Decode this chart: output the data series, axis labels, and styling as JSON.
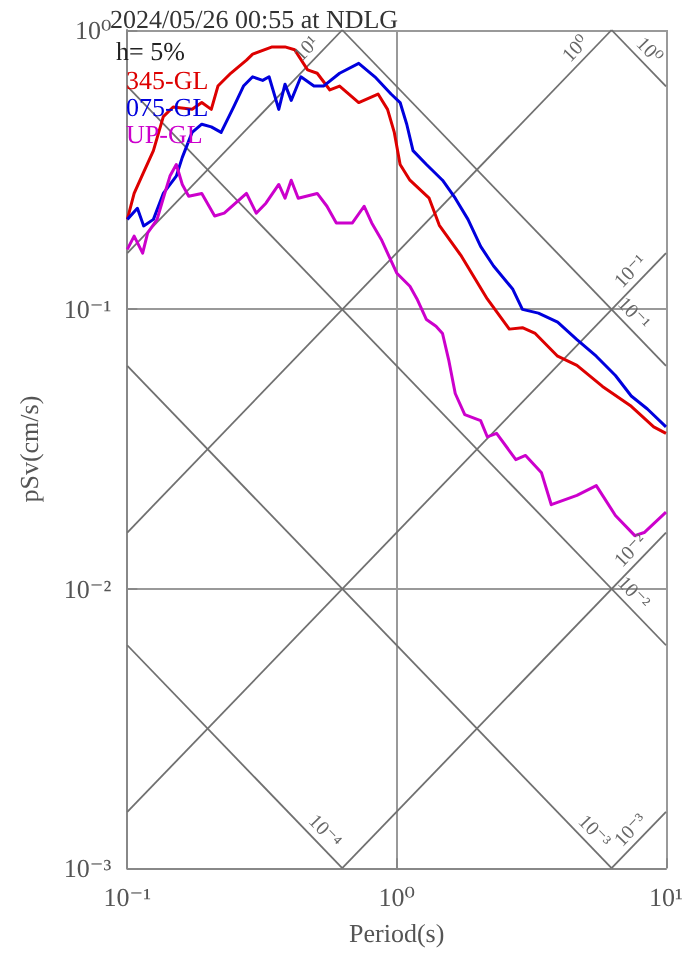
{
  "chart_data": {
    "type": "line",
    "title": "2024/05/26 00:55 at NDLG",
    "xlabel": "Period(s)",
    "ylabel": "pSv(cm/s)",
    "log": "xy",
    "xlim": [
      0.1,
      10
    ],
    "ylim": [
      0.001,
      1
    ],
    "xticks": [
      {
        "value": 0.1,
        "label": "10⁻¹"
      },
      {
        "value": 1,
        "label": "10⁰"
      },
      {
        "value": 10,
        "label": "10¹"
      }
    ],
    "yticks": [
      {
        "value": 0.001,
        "label": "10⁻³"
      },
      {
        "value": 0.01,
        "label": "10⁻²"
      },
      {
        "value": 0.1,
        "label": "10⁻¹"
      },
      {
        "value": 1,
        "label": "10⁰"
      }
    ],
    "grid": true,
    "legend": "top left",
    "series": [
      {
        "name": "345-GL",
        "color": "#dd0000",
        "x": [
          0.1,
          0.106,
          0.115,
          0.125,
          0.136,
          0.148,
          0.174,
          0.189,
          0.205,
          0.217,
          0.242,
          0.277,
          0.292,
          0.345,
          0.385,
          0.418,
          0.467,
          0.507,
          0.565,
          0.614,
          0.723,
          0.853,
          0.925,
          0.98,
          1.03,
          1.12,
          1.32,
          1.44,
          1.74,
          2.17,
          2.62,
          2.93,
          3.27,
          3.96,
          4.67,
          5.81,
          7.43,
          9.0,
          10
        ],
        "values": [
          0.21,
          0.26,
          0.31,
          0.37,
          0.49,
          0.53,
          0.52,
          0.55,
          0.52,
          0.63,
          0.7,
          0.78,
          0.82,
          0.87,
          0.87,
          0.85,
          0.72,
          0.7,
          0.61,
          0.63,
          0.55,
          0.59,
          0.52,
          0.43,
          0.33,
          0.29,
          0.25,
          0.2,
          0.155,
          0.109,
          0.085,
          0.086,
          0.082,
          0.068,
          0.063,
          0.053,
          0.045,
          0.038,
          0.036
        ]
      },
      {
        "name": "075-GL",
        "color": "#0000dd",
        "x": [
          0.1,
          0.109,
          0.115,
          0.125,
          0.136,
          0.152,
          0.16,
          0.174,
          0.189,
          0.205,
          0.223,
          0.248,
          0.27,
          0.292,
          0.318,
          0.336,
          0.365,
          0.385,
          0.406,
          0.441,
          0.493,
          0.535,
          0.614,
          0.723,
          0.83,
          0.953,
          1.03,
          1.09,
          1.15,
          1.29,
          1.48,
          1.65,
          1.84,
          2.05,
          2.29,
          2.7,
          2.93,
          3.36,
          3.96,
          4.67,
          5.51,
          6.49,
          7.43,
          8.53,
          10
        ],
        "values": [
          0.21,
          0.23,
          0.199,
          0.21,
          0.26,
          0.3,
          0.35,
          0.43,
          0.46,
          0.45,
          0.43,
          0.53,
          0.63,
          0.68,
          0.66,
          0.68,
          0.52,
          0.64,
          0.56,
          0.68,
          0.63,
          0.63,
          0.7,
          0.76,
          0.68,
          0.59,
          0.55,
          0.46,
          0.37,
          0.33,
          0.29,
          0.25,
          0.21,
          0.168,
          0.143,
          0.118,
          0.1,
          0.097,
          0.09,
          0.078,
          0.068,
          0.058,
          0.049,
          0.044,
          0.038
        ]
      },
      {
        "name": "UP-GL",
        "color": "#cc00cc",
        "x": [
          0.1,
          0.106,
          0.114,
          0.119,
          0.129,
          0.136,
          0.144,
          0.152,
          0.16,
          0.169,
          0.189,
          0.211,
          0.229,
          0.277,
          0.301,
          0.327,
          0.365,
          0.385,
          0.406,
          0.431,
          0.507,
          0.551,
          0.597,
          0.685,
          0.757,
          0.808,
          0.877,
          1.0,
          1.12,
          1.19,
          1.29,
          1.4,
          1.48,
          1.56,
          1.65,
          1.79,
          2.05,
          2.17,
          2.35,
          2.77,
          3.01,
          3.45,
          3.75,
          4.67,
          5.51,
          6.49,
          7.66,
          8.3,
          10
        ],
        "values": [
          0.164,
          0.183,
          0.159,
          0.188,
          0.21,
          0.25,
          0.3,
          0.33,
          0.28,
          0.254,
          0.26,
          0.216,
          0.221,
          0.26,
          0.221,
          0.24,
          0.28,
          0.25,
          0.29,
          0.25,
          0.26,
          0.234,
          0.204,
          0.204,
          0.234,
          0.204,
          0.178,
          0.135,
          0.121,
          0.109,
          0.092,
          0.087,
          0.082,
          0.066,
          0.05,
          0.042,
          0.04,
          0.035,
          0.036,
          0.029,
          0.03,
          0.026,
          0.02,
          0.0216,
          0.0234,
          0.0183,
          0.0155,
          0.0159,
          0.0188
        ]
      },
      {
        "color": "#707070",
        "x": [
          6.28,
          10
        ],
        "values": [
          1,
          0.628
        ]
      },
      {
        "color": "#707070",
        "x": [
          0.628,
          10
        ],
        "values": [
          1,
          0.0628
        ]
      },
      {
        "color": "#707070",
        "x": [
          0.1,
          10
        ],
        "values": [
          0.628,
          0.00628
        ]
      },
      {
        "color": "#707070",
        "x": [
          0.1,
          6.28
        ],
        "values": [
          0.0628,
          0.001
        ]
      },
      {
        "color": "#707070",
        "x": [
          0.1,
          0.628
        ],
        "values": [
          0.00628,
          0.001
        ]
      },
      {
        "color": "#707070",
        "x": [
          0.1,
          0.628
        ],
        "values": [
          0.159,
          1
        ]
      },
      {
        "color": "#707070",
        "x": [
          0.1,
          6.28
        ],
        "values": [
          0.0159,
          1
        ]
      },
      {
        "color": "#707070",
        "x": [
          0.1,
          10
        ],
        "values": [
          0.00159,
          0.159
        ]
      },
      {
        "color": "#707070",
        "x": [
          0.628,
          10
        ],
        "values": [
          0.001,
          0.0159
        ]
      },
      {
        "color": "#707070",
        "x": [
          6.28,
          10
        ],
        "values": [
          0.001,
          0.00159
        ]
      }
    ],
    "annotations": [
      "h= 5%",
      {
        "text": "10¹",
        "x": 0.5,
        "y": 0.796
      },
      {
        "text": "10⁰",
        "x": 5,
        "y": 0.796
      },
      {
        "text": "10⁰",
        "x": 8,
        "y": 0.785
      },
      {
        "text": "10⁻¹",
        "x": 8,
        "y": 0.127
      },
      {
        "text": "10⁻¹",
        "x": 7,
        "y": 0.0898
      },
      {
        "text": "10⁻²",
        "x": 8,
        "y": 0.0127
      },
      {
        "text": "10⁻²",
        "x": 7,
        "y": 0.00898
      },
      {
        "text": "10⁻⁴",
        "x": 0.5,
        "y": 0.00126
      },
      {
        "text": "10⁻³",
        "x": 5,
        "y": 0.00126
      },
      {
        "text": "10⁻³",
        "x": 8,
        "y": 0.00127
      }
    ]
  }
}
